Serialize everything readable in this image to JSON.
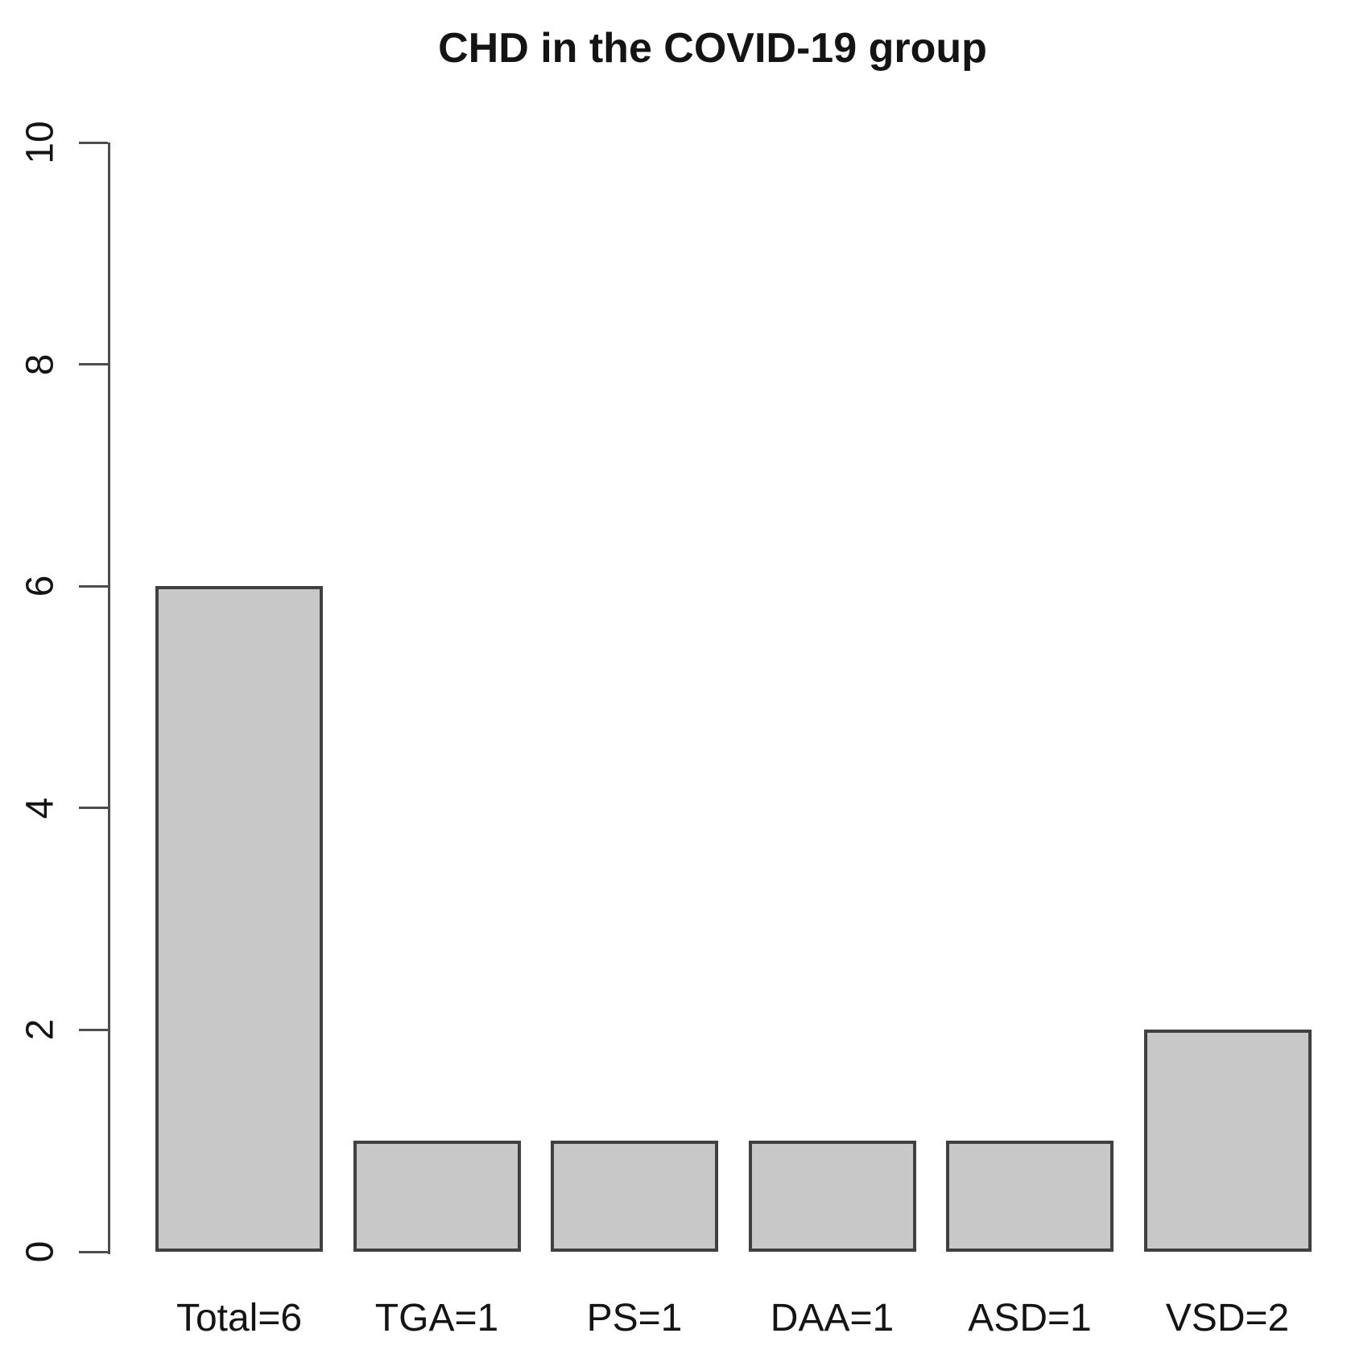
{
  "figure": {
    "background": "#ffffff"
  },
  "chart_data": {
    "type": "bar",
    "title": "CHD in the COVID-19 group",
    "categories": [
      "Total=6",
      "TGA=1",
      "PS=1",
      "DAA=1",
      "ASD=1",
      "VSD=2"
    ],
    "values": [
      6,
      1,
      1,
      1,
      1,
      2
    ],
    "xlabel": "",
    "ylabel": "",
    "ylim": [
      0,
      10
    ],
    "yticks": [
      0,
      2,
      4,
      6,
      8,
      10
    ],
    "ytick_labels": [
      "0",
      "2",
      "4",
      "6",
      "8",
      "10"
    ],
    "grid": false,
    "legend_position": "none",
    "bar_fill": "#c8c8c8",
    "bar_border": "#404040",
    "axis_color": "#4d4d4d",
    "text_color": "#141414"
  }
}
